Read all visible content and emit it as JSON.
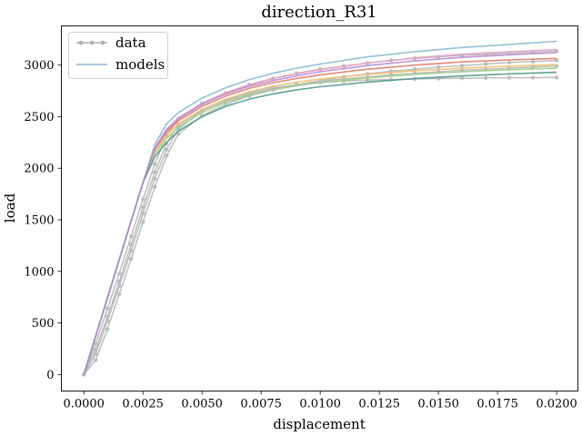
{
  "chart_data": {
    "type": "line",
    "title": "direction_R31",
    "xlabel": "displacement",
    "ylabel": "load",
    "xlim": [
      -0.00095,
      0.0209
    ],
    "ylim": [
      -160,
      3380
    ],
    "x_ticks": [
      0.0,
      0.0025,
      0.005,
      0.0075,
      0.01,
      0.0125,
      0.015,
      0.0175,
      0.02
    ],
    "x_tick_labels": [
      "0.0000",
      "0.0025",
      "0.0050",
      "0.0075",
      "0.0100",
      "0.0125",
      "0.0150",
      "0.0175",
      "0.0200"
    ],
    "y_ticks": [
      0,
      500,
      1000,
      1500,
      2000,
      2500,
      3000
    ],
    "y_tick_labels": [
      "0",
      "500",
      "1000",
      "1500",
      "2000",
      "2500",
      "3000"
    ],
    "legend": {
      "location": "top-left",
      "entries": [
        {
          "label": "data",
          "color": "#b0b0b0",
          "marker": "circle"
        },
        {
          "label": "models",
          "color": "#8ab8d4",
          "marker": "none"
        }
      ]
    },
    "data_series": [
      {
        "name": "data",
        "color": "#bdbdbd",
        "x": [
          0.0,
          0.0005,
          0.001,
          0.0015,
          0.002,
          0.0025,
          0.003,
          0.0035,
          0.004,
          0.005,
          0.006,
          0.007,
          0.008,
          0.009,
          0.01,
          0.011,
          0.012,
          0.013,
          0.014,
          0.015,
          0.016,
          0.017,
          0.018,
          0.019,
          0.02
        ],
        "y": [
          0,
          240,
          560,
          900,
          1260,
          1620,
          1960,
          2240,
          2420,
          2560,
          2650,
          2720,
          2770,
          2810,
          2840,
          2865,
          2885,
          2905,
          2920,
          2935,
          2950,
          2960,
          2970,
          2980,
          2990
        ]
      },
      {
        "name": "data",
        "color": "#bdbdbd",
        "x": [
          0.0,
          0.0005,
          0.001,
          0.0015,
          0.002,
          0.0025,
          0.003,
          0.0035,
          0.004,
          0.005,
          0.006,
          0.007,
          0.008,
          0.009,
          0.01,
          0.011,
          0.012,
          0.013,
          0.014,
          0.015,
          0.016,
          0.017,
          0.018,
          0.019,
          0.02
        ],
        "y": [
          0,
          140,
          440,
          780,
          1120,
          1480,
          1820,
          2120,
          2330,
          2510,
          2620,
          2700,
          2760,
          2810,
          2850,
          2885,
          2915,
          2940,
          2960,
          2980,
          2995,
          3010,
          3025,
          3035,
          3045
        ]
      },
      {
        "name": "data",
        "color": "#bdbdbd",
        "x": [
          0.0,
          0.0005,
          0.001,
          0.0015,
          0.002,
          0.0025,
          0.003,
          0.0035,
          0.004,
          0.005,
          0.006,
          0.007,
          0.008,
          0.009,
          0.01,
          0.011,
          0.012,
          0.013,
          0.014,
          0.015,
          0.016,
          0.017,
          0.018,
          0.019,
          0.02
        ],
        "y": [
          0,
          300,
          640,
          980,
          1340,
          1700,
          2040,
          2320,
          2480,
          2630,
          2730,
          2810,
          2870,
          2920,
          2960,
          2990,
          3020,
          3045,
          3065,
          3080,
          3095,
          3105,
          3115,
          3125,
          3135
        ]
      },
      {
        "name": "data",
        "color": "#bdbdbd",
        "x": [
          0.0,
          0.0005,
          0.001,
          0.0015,
          0.002,
          0.0025,
          0.003,
          0.0035,
          0.004,
          0.005,
          0.006,
          0.007,
          0.008,
          0.009,
          0.01,
          0.011,
          0.012,
          0.013,
          0.014,
          0.015,
          0.016,
          0.017,
          0.018,
          0.019,
          0.02
        ],
        "y": [
          0,
          200,
          520,
          860,
          1200,
          1560,
          1900,
          2180,
          2380,
          2560,
          2660,
          2730,
          2780,
          2810,
          2830,
          2845,
          2855,
          2860,
          2865,
          2870,
          2872,
          2875,
          2877,
          2878,
          2880
        ]
      }
    ],
    "model_series": [
      {
        "name": "models",
        "color": "#8ab8d4",
        "x": [
          0.0,
          0.0025,
          0.003,
          0.0035,
          0.004,
          0.005,
          0.006,
          0.007,
          0.008,
          0.009,
          0.01,
          0.012,
          0.014,
          0.016,
          0.018,
          0.02
        ],
        "y": [
          0,
          1860,
          2230,
          2430,
          2540,
          2680,
          2780,
          2860,
          2920,
          2970,
          3010,
          3080,
          3130,
          3170,
          3200,
          3230
        ]
      },
      {
        "name": "models",
        "color": "#e8a0c8",
        "x": [
          0.0,
          0.0025,
          0.003,
          0.0035,
          0.004,
          0.005,
          0.006,
          0.007,
          0.008,
          0.009,
          0.01,
          0.012,
          0.014,
          0.016,
          0.018,
          0.02
        ],
        "y": [
          0,
          1860,
          2200,
          2380,
          2490,
          2630,
          2730,
          2810,
          2870,
          2915,
          2955,
          3020,
          3070,
          3105,
          3130,
          3150
        ]
      },
      {
        "name": "models",
        "color": "#e07b6a",
        "x": [
          0.0,
          0.0025,
          0.003,
          0.0035,
          0.004,
          0.005,
          0.006,
          0.007,
          0.008,
          0.009,
          0.01,
          0.012,
          0.014,
          0.016,
          0.018,
          0.02
        ],
        "y": [
          0,
          1860,
          2180,
          2350,
          2460,
          2600,
          2700,
          2775,
          2830,
          2870,
          2905,
          2960,
          3000,
          3030,
          3050,
          3065
        ]
      },
      {
        "name": "models",
        "color": "#f0c070",
        "x": [
          0.0,
          0.0025,
          0.003,
          0.0035,
          0.004,
          0.005,
          0.006,
          0.007,
          0.008,
          0.009,
          0.01,
          0.012,
          0.014,
          0.016,
          0.018,
          0.02
        ],
        "y": [
          0,
          1860,
          2160,
          2320,
          2430,
          2570,
          2670,
          2740,
          2795,
          2835,
          2865,
          2910,
          2945,
          2970,
          2990,
          3005
        ]
      },
      {
        "name": "models",
        "color": "#9fcf8a",
        "x": [
          0.0,
          0.0025,
          0.003,
          0.0035,
          0.004,
          0.005,
          0.006,
          0.007,
          0.008,
          0.009,
          0.01,
          0.012,
          0.014,
          0.016,
          0.018,
          0.02
        ],
        "y": [
          0,
          1860,
          2140,
          2290,
          2400,
          2540,
          2640,
          2710,
          2760,
          2800,
          2830,
          2875,
          2910,
          2935,
          2955,
          2970
        ]
      },
      {
        "name": "models",
        "color": "#4f9a8a",
        "x": [
          0.0,
          0.0025,
          0.003,
          0.0035,
          0.004,
          0.005,
          0.006,
          0.007,
          0.008,
          0.009,
          0.01,
          0.012,
          0.014,
          0.016,
          0.018,
          0.02
        ],
        "y": [
          0,
          1860,
          2110,
          2250,
          2360,
          2500,
          2600,
          2670,
          2720,
          2760,
          2790,
          2835,
          2870,
          2895,
          2915,
          2930
        ]
      },
      {
        "name": "models",
        "color": "#b98ad0",
        "x": [
          0.0,
          0.0025,
          0.003,
          0.0035,
          0.004,
          0.005,
          0.006,
          0.007,
          0.008,
          0.009,
          0.01,
          0.012,
          0.014,
          0.016,
          0.018,
          0.02
        ],
        "y": [
          0,
          1860,
          2190,
          2370,
          2480,
          2620,
          2720,
          2795,
          2850,
          2895,
          2935,
          2995,
          3040,
          3075,
          3100,
          3120
        ]
      }
    ]
  }
}
